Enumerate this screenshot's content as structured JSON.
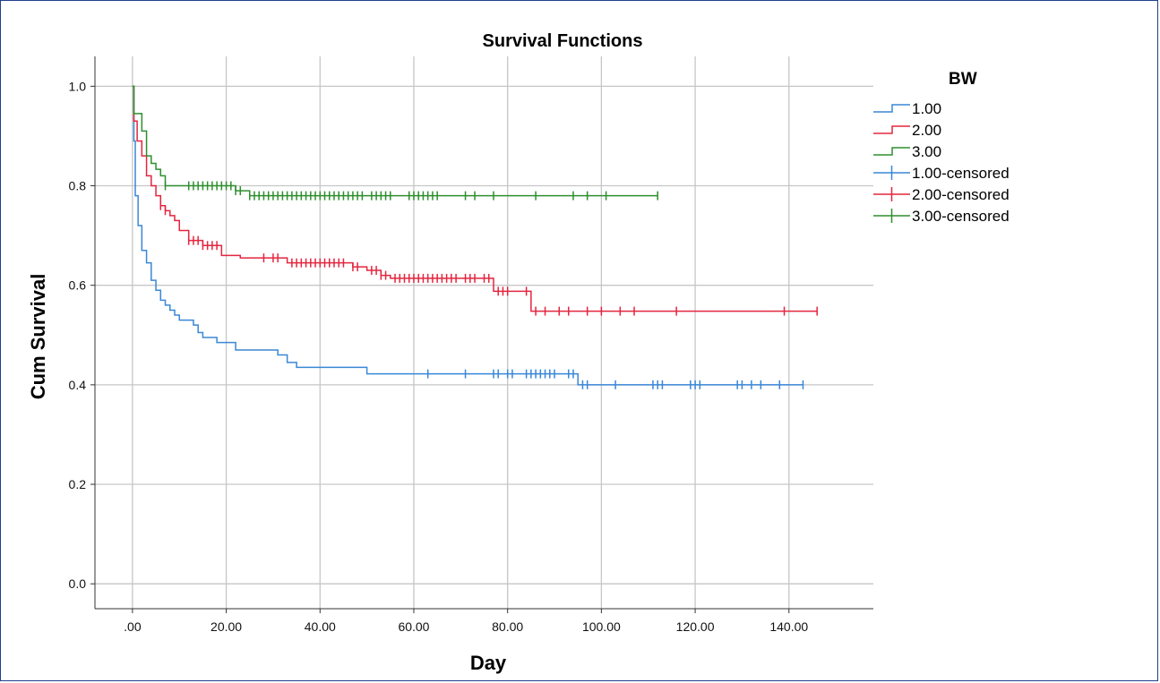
{
  "chart_data": {
    "type": "line",
    "title": "Survival Functions",
    "xlabel": "Day",
    "ylabel": "Cum Survival",
    "xlim": [
      -8,
      158
    ],
    "ylim": [
      -0.05,
      1.06
    ],
    "x_ticks": [
      0,
      20,
      40,
      60,
      80,
      100,
      120,
      140
    ],
    "x_tick_labels": [
      ".00",
      "20.00",
      "40.00",
      "60.00",
      "80.00",
      "100.00",
      "120.00",
      "140.00"
    ],
    "y_ticks": [
      0,
      0.2,
      0.4,
      0.6,
      0.8,
      1.0
    ],
    "y_tick_labels": [
      "0.0",
      "0.2",
      "0.4",
      "0.6",
      "0.8",
      "1.0"
    ],
    "grid": true,
    "legend": {
      "title": "BW",
      "position": "right",
      "entries": [
        {
          "label": "1.00",
          "color": "#3a87d6",
          "kind": "step"
        },
        {
          "label": "2.00",
          "color": "#e3263f",
          "kind": "step"
        },
        {
          "label": "3.00",
          "color": "#2e8f2e",
          "kind": "step"
        },
        {
          "label": "1.00-censored",
          "color": "#3a87d6",
          "kind": "censor"
        },
        {
          "label": "2.00-censored",
          "color": "#e3263f",
          "kind": "censor"
        },
        {
          "label": "3.00-censored",
          "color": "#2e8f2e",
          "kind": "censor"
        }
      ]
    },
    "series": [
      {
        "name": "1.00",
        "color": "#3a87d6",
        "steps": [
          [
            0,
            1.0
          ],
          [
            0.3,
            0.89
          ],
          [
            0.6,
            0.78
          ],
          [
            1.2,
            0.72
          ],
          [
            2,
            0.67
          ],
          [
            3,
            0.645
          ],
          [
            4,
            0.61
          ],
          [
            5,
            0.59
          ],
          [
            6,
            0.57
          ],
          [
            7,
            0.56
          ],
          [
            8,
            0.55
          ],
          [
            9,
            0.54
          ],
          [
            10,
            0.53
          ],
          [
            13,
            0.52
          ],
          [
            14,
            0.505
          ],
          [
            15,
            0.495
          ],
          [
            18,
            0.485
          ],
          [
            22,
            0.47
          ],
          [
            31,
            0.46
          ],
          [
            33,
            0.445
          ],
          [
            35,
            0.435
          ],
          [
            50,
            0.422
          ],
          [
            95,
            0.4
          ]
        ],
        "censored": [
          63,
          71,
          77,
          78,
          80,
          81,
          84,
          85,
          86,
          87,
          88,
          89,
          90,
          93,
          94,
          96,
          97,
          103,
          111,
          112,
          113,
          119,
          120,
          121,
          129,
          130,
          132,
          134,
          138,
          143
        ]
      },
      {
        "name": "2.00",
        "color": "#e3263f",
        "steps": [
          [
            0,
            1.0
          ],
          [
            0.3,
            0.93
          ],
          [
            1,
            0.89
          ],
          [
            2,
            0.86
          ],
          [
            3,
            0.82
          ],
          [
            4,
            0.8
          ],
          [
            5,
            0.78
          ],
          [
            6,
            0.76
          ],
          [
            7,
            0.75
          ],
          [
            8,
            0.74
          ],
          [
            9,
            0.73
          ],
          [
            10,
            0.71
          ],
          [
            12,
            0.69
          ],
          [
            15,
            0.68
          ],
          [
            19,
            0.66
          ],
          [
            23,
            0.655
          ],
          [
            33,
            0.645
          ],
          [
            47,
            0.637
          ],
          [
            50,
            0.63
          ],
          [
            53,
            0.62
          ],
          [
            55,
            0.614
          ],
          [
            77,
            0.588
          ],
          [
            85,
            0.548
          ]
        ],
        "censored": [
          6,
          7,
          12,
          13,
          14,
          15,
          16,
          17,
          18,
          28,
          30,
          31,
          34,
          35,
          36,
          37,
          38,
          39,
          40,
          41,
          42,
          43,
          44,
          45,
          47,
          48,
          51,
          52,
          53,
          54,
          56,
          57,
          58,
          59,
          60,
          61,
          62,
          63,
          64,
          65,
          66,
          67,
          68,
          69,
          71,
          72,
          73,
          75,
          76,
          78,
          79,
          80,
          84,
          86,
          88,
          91,
          93,
          97,
          100,
          104,
          107,
          116,
          139,
          146
        ]
      },
      {
        "name": "3.00",
        "color": "#2e8f2e",
        "steps": [
          [
            0,
            1.0
          ],
          [
            0.3,
            0.945
          ],
          [
            2,
            0.91
          ],
          [
            3,
            0.86
          ],
          [
            4,
            0.845
          ],
          [
            5,
            0.833
          ],
          [
            6,
            0.82
          ],
          [
            7,
            0.8
          ],
          [
            22,
            0.79
          ],
          [
            25,
            0.78
          ]
        ],
        "censored": [
          7,
          12,
          13,
          14,
          15,
          16,
          17,
          18,
          19,
          20,
          21,
          22,
          23,
          25,
          26,
          27,
          28,
          29,
          30,
          31,
          32,
          33,
          34,
          35,
          36,
          37,
          38,
          39,
          40,
          41,
          42,
          43,
          44,
          45,
          46,
          47,
          48,
          49,
          51,
          52,
          53,
          54,
          55,
          59,
          60,
          61,
          62,
          63,
          64,
          65,
          71,
          73,
          77,
          86,
          94,
          97,
          101,
          112
        ]
      }
    ]
  }
}
